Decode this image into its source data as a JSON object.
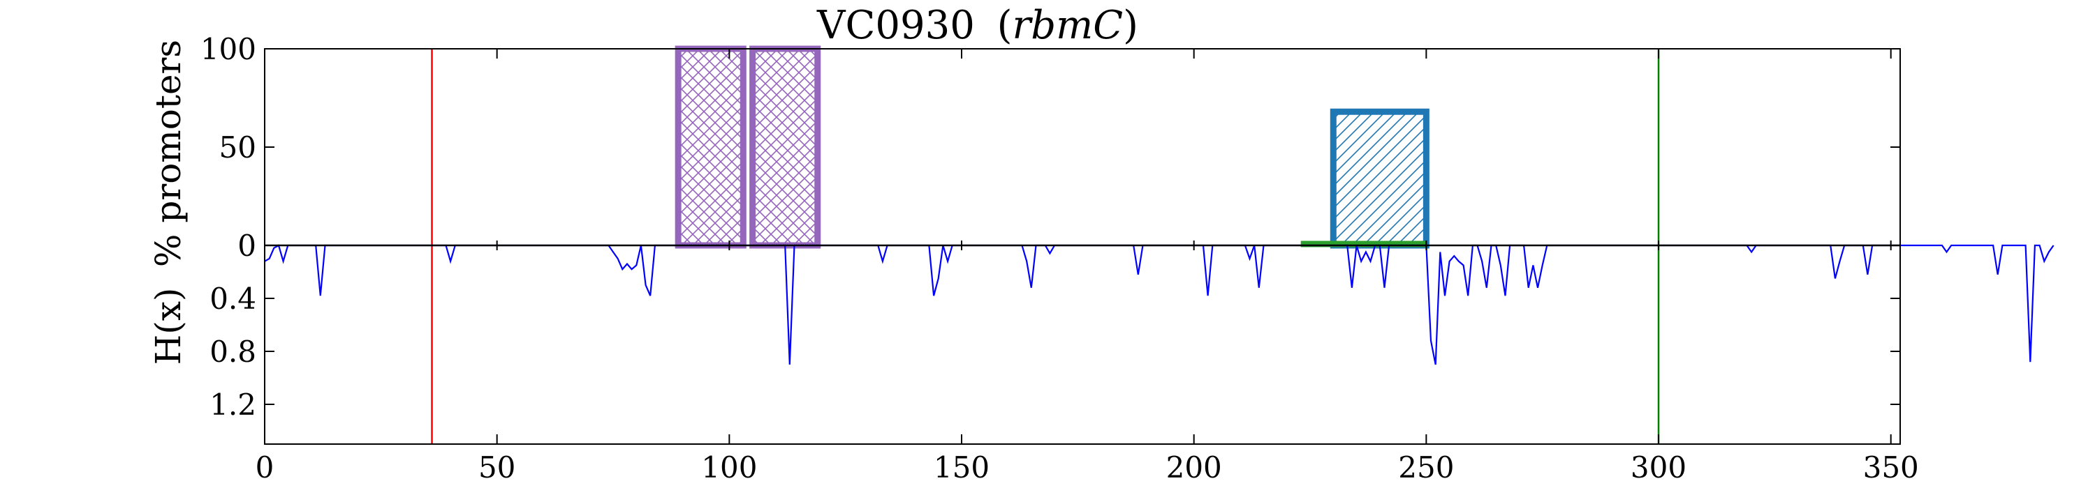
{
  "chart_data": {
    "type": "bar+line",
    "title_main": "VC0930",
    "title_paren_open": "(",
    "title_gene": "rbmC",
    "title_paren_close": ")",
    "xlim": [
      0,
      352
    ],
    "x_ticks": [
      0,
      50,
      100,
      150,
      200,
      250,
      300,
      350
    ],
    "top_panel": {
      "ylabel": "% promoters",
      "ylim": [
        0,
        100
      ],
      "y_ticks": [
        0,
        50,
        100
      ],
      "bars": [
        {
          "x_start": 89,
          "x_end": 103,
          "value": 100,
          "color": "#9467bd",
          "hatch": "cross"
        },
        {
          "x_start": 105,
          "x_end": 119,
          "value": 100,
          "color": "#9467bd",
          "hatch": "cross"
        },
        {
          "x_start": 230,
          "x_end": 250,
          "value": 68,
          "color": "#1f77b4",
          "hatch": "diagonal"
        }
      ],
      "green_segment": {
        "x_start": 223,
        "x_end": 250,
        "color": "#2ca02c"
      }
    },
    "bottom_panel": {
      "ylabel": "H(x)",
      "ylim": [
        0,
        1.5
      ],
      "y_ticks": [
        0.4,
        0.8,
        1.2
      ],
      "line_color": "#0000ff",
      "entropy": [
        0.12,
        0.1,
        0.02,
        0,
        0.12,
        0,
        0,
        0,
        0,
        0,
        0,
        0,
        0.38,
        0,
        0,
        0,
        0,
        0,
        0,
        0,
        0,
        0,
        0,
        0,
        0,
        0,
        0,
        0,
        0,
        0,
        0,
        0,
        0,
        0,
        0,
        0,
        0,
        0,
        0,
        0,
        0.12,
        0,
        0,
        0,
        0,
        0,
        0,
        0,
        0,
        0,
        0,
        0,
        0,
        0,
        0,
        0,
        0,
        0,
        0,
        0,
        0,
        0,
        0,
        0,
        0,
        0,
        0,
        0,
        0,
        0,
        0,
        0,
        0,
        0,
        0,
        0.05,
        0.1,
        0.18,
        0.14,
        0.18,
        0.15,
        0,
        0.3,
        0.38,
        0,
        0,
        0,
        0,
        0,
        0,
        0,
        0,
        0,
        0,
        0,
        0,
        0,
        0,
        0,
        0,
        0,
        0,
        0,
        0,
        0,
        0,
        0,
        0,
        0,
        0,
        0,
        0,
        0,
        0.9,
        0,
        0,
        0,
        0,
        0,
        0,
        0,
        0,
        0,
        0,
        0,
        0,
        0,
        0,
        0,
        0,
        0,
        0,
        0,
        0.12,
        0,
        0,
        0,
        0,
        0,
        0,
        0,
        0,
        0,
        0,
        0.38,
        0.25,
        0,
        0.12,
        0,
        0,
        0,
        0,
        0,
        0,
        0,
        0,
        0,
        0,
        0,
        0,
        0,
        0,
        0,
        0,
        0.12,
        0.32,
        0,
        0,
        0,
        0.06,
        0,
        0,
        0,
        0,
        0,
        0,
        0,
        0,
        0,
        0,
        0,
        0,
        0,
        0,
        0,
        0,
        0,
        0,
        0.22,
        0,
        0,
        0,
        0,
        0,
        0,
        0,
        0,
        0,
        0,
        0,
        0,
        0,
        0,
        0.38,
        0,
        0,
        0,
        0,
        0,
        0,
        0,
        0,
        0.1,
        0,
        0.32,
        0,
        0,
        0,
        0,
        0,
        0,
        0,
        0,
        0,
        0,
        0,
        0,
        0,
        0,
        0,
        0,
        0,
        0,
        0,
        0.32,
        0,
        0.12,
        0.05,
        0.12,
        0,
        0,
        0.32,
        0,
        0,
        0,
        0,
        0,
        0,
        0,
        0,
        0,
        0.72,
        0.9,
        0.05,
        0.38,
        0.12,
        0.08,
        0.12,
        0.15,
        0.38,
        0,
        0,
        0.12,
        0.32,
        0,
        0,
        0.15,
        0.38,
        0,
        0,
        0,
        0,
        0.32,
        0.15,
        0.32,
        0.15,
        0,
        0,
        0,
        0,
        0,
        0,
        0,
        0,
        0,
        0,
        0,
        0,
        0,
        0,
        0,
        0,
        0,
        0,
        0,
        0,
        0,
        0,
        0,
        0,
        0,
        0,
        0,
        0,
        0,
        0,
        0,
        0,
        0,
        0,
        0,
        0,
        0,
        0,
        0,
        0,
        0,
        0,
        0,
        0,
        0.05,
        0,
        0,
        0,
        0,
        0,
        0,
        0,
        0,
        0,
        0,
        0,
        0,
        0,
        0,
        0,
        0,
        0,
        0.25,
        0.12,
        0,
        0,
        0,
        0,
        0,
        0.22,
        0,
        0,
        0,
        0,
        0,
        0,
        0,
        0,
        0,
        0,
        0,
        0,
        0,
        0,
        0,
        0,
        0.05,
        0,
        0,
        0,
        0,
        0,
        0,
        0,
        0,
        0,
        0,
        0.22,
        0,
        0,
        0,
        0,
        0,
        0,
        0.88,
        0,
        0,
        0.12,
        0.05,
        0
      ]
    },
    "vertical_lines": [
      {
        "x": 36,
        "color": "#ff0000"
      },
      {
        "x": 300,
        "color": "#008000"
      }
    ]
  }
}
